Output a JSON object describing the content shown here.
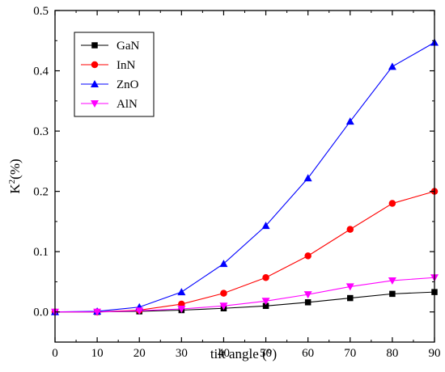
{
  "chart_data": {
    "type": "line",
    "title": "",
    "xlabel": "tilt angle (°)",
    "ylabel_main": "K",
    "ylabel_sup": "2",
    "ylabel_tail": "(%)",
    "xlim": [
      0,
      90
    ],
    "ylim": [
      -0.05,
      0.5
    ],
    "x_ticks": [
      0,
      10,
      20,
      30,
      40,
      50,
      60,
      70,
      80,
      90
    ],
    "y_ticks": [
      0.0,
      0.1,
      0.2,
      0.3,
      0.4,
      0.5
    ],
    "y_tick_labels": [
      "0.0",
      "0.1",
      "0.2",
      "0.3",
      "0.4",
      "0.5"
    ],
    "grid": false,
    "legend_position": "top-left",
    "x": [
      0,
      10,
      20,
      30,
      40,
      50,
      60,
      70,
      80,
      90
    ],
    "series": [
      {
        "name": "GaN",
        "color": "#000000",
        "marker": "square",
        "values": [
          0.0,
          0.0,
          0.001,
          0.003,
          0.006,
          0.01,
          0.016,
          0.023,
          0.03,
          0.033
        ]
      },
      {
        "name": "InN",
        "color": "#ff0000",
        "marker": "circle",
        "values": [
          0.0,
          0.0,
          0.003,
          0.013,
          0.031,
          0.057,
          0.093,
          0.137,
          0.18,
          0.2
        ]
      },
      {
        "name": "ZnO",
        "color": "#0000ff",
        "marker": "triangle-up",
        "values": [
          0.0,
          0.001,
          0.008,
          0.033,
          0.08,
          0.143,
          0.222,
          0.316,
          0.407,
          0.447
        ]
      },
      {
        "name": "AlN",
        "color": "#ff00ff",
        "marker": "triangle-down",
        "values": [
          0.0,
          0.0,
          0.002,
          0.005,
          0.01,
          0.018,
          0.029,
          0.042,
          0.052,
          0.057
        ]
      }
    ]
  }
}
